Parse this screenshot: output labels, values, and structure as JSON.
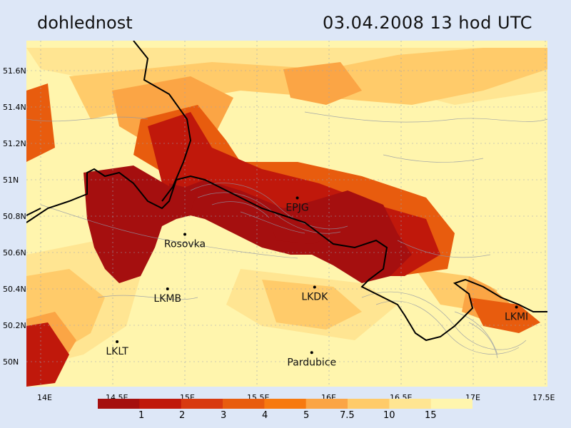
{
  "header": {
    "title_left": "dohlednost",
    "title_right": "03.04.2008  13 hod UTC"
  },
  "axes": {
    "lat_labels": [
      "51.6N",
      "51.4N",
      "51.2N",
      "51N",
      "50.8N",
      "50.6N",
      "50.4N",
      "50.2N",
      "50N"
    ],
    "lon_labels": [
      "14E",
      "14.5E",
      "15E",
      "15.5E",
      "16E",
      "16.5E",
      "17E",
      "17.5E"
    ]
  },
  "places": [
    {
      "name": "EPJG",
      "lon": 15.78,
      "lat": 50.9
    },
    {
      "name": "Rosovka",
      "lon": 15.0,
      "lat": 50.7
    },
    {
      "name": "LKMB",
      "lon": 14.88,
      "lat": 50.4
    },
    {
      "name": "LKDK",
      "lon": 15.9,
      "lat": 50.41
    },
    {
      "name": "LKMI",
      "lon": 17.3,
      "lat": 50.3
    },
    {
      "name": "LKLT",
      "lon": 14.53,
      "lat": 50.11
    },
    {
      "name": "Pardubice",
      "lon": 15.88,
      "lat": 50.05
    }
  ],
  "legend": {
    "colors": [
      "#a50f0f",
      "#c0180b",
      "#d83a10",
      "#e85c0e",
      "#f7790f",
      "#fba545",
      "#ffcb6a",
      "#ffe592",
      "#fff5ad"
    ],
    "labels": [
      "1",
      "2",
      "3",
      "4",
      "5",
      "7.5",
      "10",
      "15"
    ]
  }
}
